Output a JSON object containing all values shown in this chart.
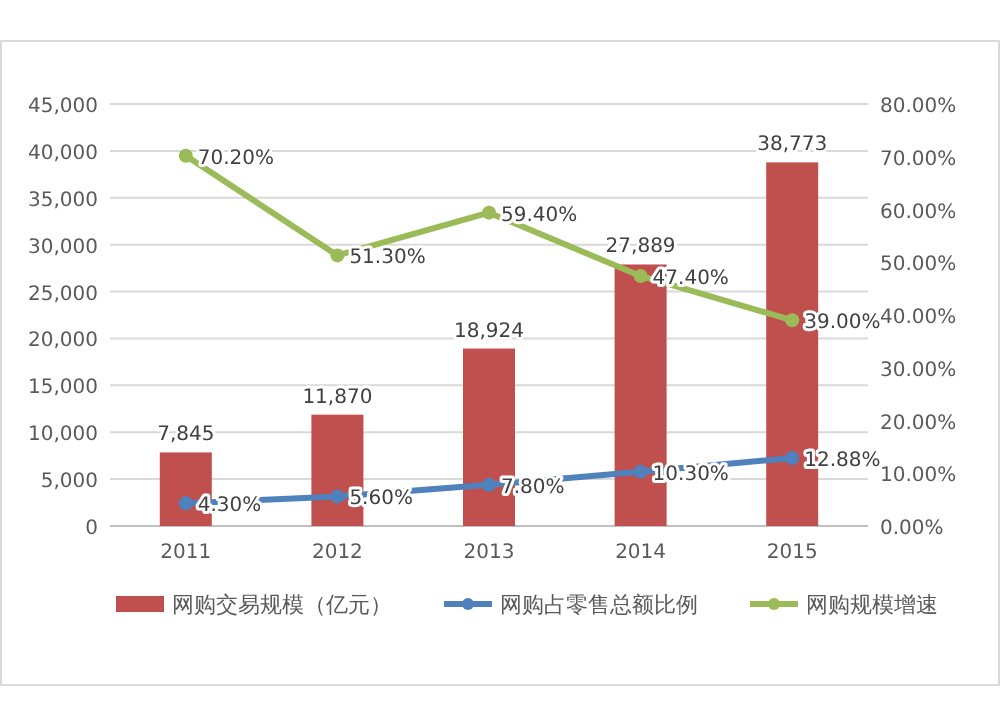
{
  "chart_data": {
    "type": "bar",
    "categories": [
      "2011",
      "2012",
      "2013",
      "2014",
      "2015"
    ],
    "series": [
      {
        "name": "网购交易规模（亿元）",
        "color": "#c0504d",
        "values": [
          7845,
          11870,
          18924,
          27889,
          38773
        ],
        "value_labels": [
          "7,845",
          "11,870",
          "18,924",
          "27,889",
          "38,773"
        ]
      },
      {
        "name": "网购占零售总额比例",
        "type": "line",
        "axis": "y2",
        "color": "#4f81bd",
        "values": [
          4.3,
          5.6,
          7.8,
          10.3,
          12.88
        ],
        "value_labels": [
          "4.30%",
          "5.60%",
          "7.80%",
          "10.30%",
          "12.88%"
        ]
      },
      {
        "name": "网购规模增速",
        "type": "line",
        "axis": "y2",
        "color": "#9bbb59",
        "values": [
          70.2,
          51.3,
          59.4,
          47.4,
          39.0
        ],
        "value_labels": [
          "70.20%",
          "51.30%",
          "59.40%",
          "47.40%",
          "39.00%"
        ]
      }
    ],
    "ylim": [
      0,
      45000
    ],
    "yticks": [
      {
        "value": 0,
        "label": "0"
      },
      {
        "value": 5000,
        "label": "5,000"
      },
      {
        "value": 10000,
        "label": "10,000"
      },
      {
        "value": 15000,
        "label": "15,000"
      },
      {
        "value": 20000,
        "label": "20,000"
      },
      {
        "value": 25000,
        "label": "25,000"
      },
      {
        "value": 30000,
        "label": "30,000"
      },
      {
        "value": 35000,
        "label": "35,000"
      },
      {
        "value": 40000,
        "label": "40,000"
      },
      {
        "value": 45000,
        "label": "45,000"
      }
    ],
    "y2lim": [
      0,
      80
    ],
    "y2ticks": [
      {
        "value": 0,
        "label": "0.00%"
      },
      {
        "value": 10,
        "label": "10.00%"
      },
      {
        "value": 20,
        "label": "20.00%"
      },
      {
        "value": 30,
        "label": "30.00%"
      },
      {
        "value": 40,
        "label": "40.00%"
      },
      {
        "value": 50,
        "label": "50.00%"
      },
      {
        "value": 60,
        "label": "60.00%"
      },
      {
        "value": 70,
        "label": "70.00%"
      },
      {
        "value": 80,
        "label": "80.00%"
      }
    ],
    "grid": "y",
    "legend": "bottom",
    "marker": "circle"
  }
}
